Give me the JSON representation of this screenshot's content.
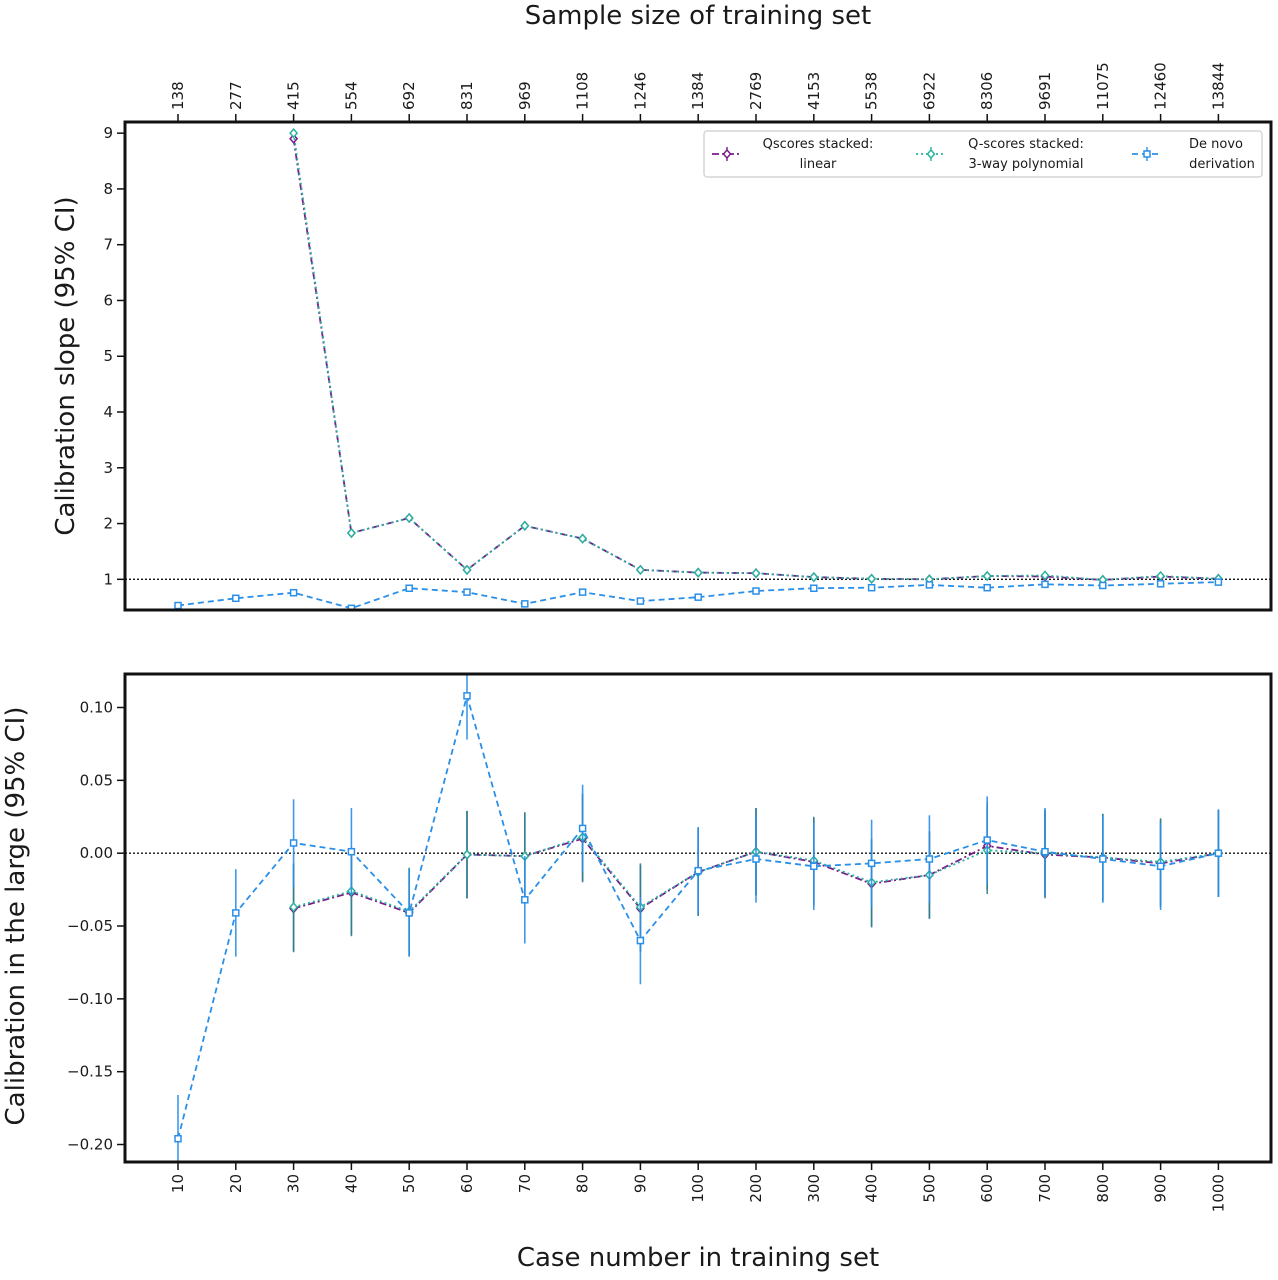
{
  "figure": {
    "top_axis_title": "Sample size of training set",
    "bottom_axis_title": "Case number in training set",
    "top_panel_ylabel": "Calibration slope (95% CI)",
    "bottom_panel_ylabel": "Calibration in the large (95% CI)"
  },
  "legend": [
    {
      "key": "q_linear",
      "line1": "Qscores stacked:",
      "line2": "linear",
      "color": "#7b1a8c",
      "dash": "dashdot",
      "marker": "diamond"
    },
    {
      "key": "q_poly",
      "line1": "Q-scores stacked:",
      "line2": "3-way polynomial",
      "color": "#2bb3a0",
      "dash": "dotted",
      "marker": "diamond"
    },
    {
      "key": "denovo",
      "line1": "De novo",
      "line2": "derivation",
      "color": "#2a8fe8",
      "dash": "dashed",
      "marker": "square"
    }
  ],
  "chart_data": [
    {
      "type": "line",
      "panel": "top",
      "categories": [
        "10",
        "20",
        "30",
        "40",
        "50",
        "60",
        "70",
        "80",
        "90",
        "100",
        "200",
        "300",
        "400",
        "500",
        "600",
        "700",
        "800",
        "900",
        "1000"
      ],
      "top_axis_labels": [
        "138",
        "277",
        "415",
        "554",
        "692",
        "831",
        "969",
        "1108",
        "1246",
        "1384",
        "2769",
        "4153",
        "5538",
        "6922",
        "8306",
        "9691",
        "11075",
        "12460",
        "13844"
      ],
      "ylabel": "Calibration slope (95% CI)",
      "xlabel_top": "Sample size of training set",
      "ylim": [
        0.45,
        9.2
      ],
      "yticks": [
        1,
        2,
        3,
        4,
        5,
        6,
        7,
        8,
        9
      ],
      "reference_line": 1,
      "legend_position": "top-right",
      "series": [
        {
          "key": "q_linear",
          "name": "Qscores stacked: linear",
          "values": [
            null,
            null,
            8.9,
            1.83,
            2.1,
            1.17,
            1.96,
            1.73,
            1.17,
            1.12,
            1.11,
            1.04,
            1.01,
            1.0,
            1.06,
            1.05,
            0.99,
            1.05,
            1.01
          ]
        },
        {
          "key": "q_poly",
          "name": "Q-scores stacked: 3-way polynomial",
          "values": [
            null,
            null,
            9.0,
            1.83,
            2.1,
            1.17,
            1.96,
            1.73,
            1.17,
            1.12,
            1.11,
            1.04,
            1.01,
            1.0,
            1.06,
            1.07,
            0.99,
            1.06,
            1.01
          ]
        },
        {
          "key": "denovo",
          "name": "De novo derivation",
          "values": [
            0.53,
            0.66,
            0.76,
            0.48,
            0.84,
            0.77,
            0.56,
            0.77,
            0.61,
            0.68,
            0.79,
            0.84,
            0.85,
            0.9,
            0.85,
            0.91,
            0.89,
            0.92,
            0.95
          ]
        }
      ]
    },
    {
      "type": "line",
      "panel": "bottom",
      "categories": [
        "10",
        "20",
        "30",
        "40",
        "50",
        "60",
        "70",
        "80",
        "90",
        "100",
        "200",
        "300",
        "400",
        "500",
        "600",
        "700",
        "800",
        "900",
        "1000"
      ],
      "ylabel": "Calibration in the large (95% CI)",
      "xlabel": "Case number in training set",
      "ylim": [
        -0.212,
        0.123
      ],
      "yticks": [
        -0.2,
        -0.15,
        -0.1,
        -0.05,
        0.0,
        0.05,
        0.1
      ],
      "ytick_labels": [
        "−0.20",
        "−0.15",
        "−0.10",
        "−0.05",
        "0.00",
        "0.05",
        "0.10"
      ],
      "reference_line": 0,
      "error_half_width": 0.03,
      "series": [
        {
          "key": "q_linear",
          "name": "Qscores stacked: linear",
          "values": [
            null,
            null,
            -0.038,
            -0.027,
            -0.041,
            -0.001,
            -0.002,
            0.01,
            -0.038,
            -0.013,
            0.001,
            -0.006,
            -0.021,
            -0.015,
            0.005,
            -0.001,
            -0.003,
            -0.007,
            0.0
          ]
        },
        {
          "key": "q_poly",
          "name": "Q-scores stacked: 3-way polynomial",
          "values": [
            null,
            null,
            -0.037,
            -0.026,
            -0.04,
            -0.001,
            -0.002,
            0.011,
            -0.037,
            -0.013,
            0.001,
            -0.005,
            -0.02,
            -0.015,
            0.002,
            0.0,
            -0.003,
            -0.006,
            0.0
          ]
        },
        {
          "key": "denovo",
          "name": "De novo derivation",
          "values": [
            -0.196,
            -0.041,
            0.007,
            0.001,
            -0.041,
            0.108,
            -0.032,
            0.017,
            -0.06,
            -0.012,
            -0.004,
            -0.009,
            -0.007,
            -0.004,
            0.009,
            0.001,
            -0.004,
            -0.009,
            0.0
          ]
        }
      ]
    }
  ]
}
